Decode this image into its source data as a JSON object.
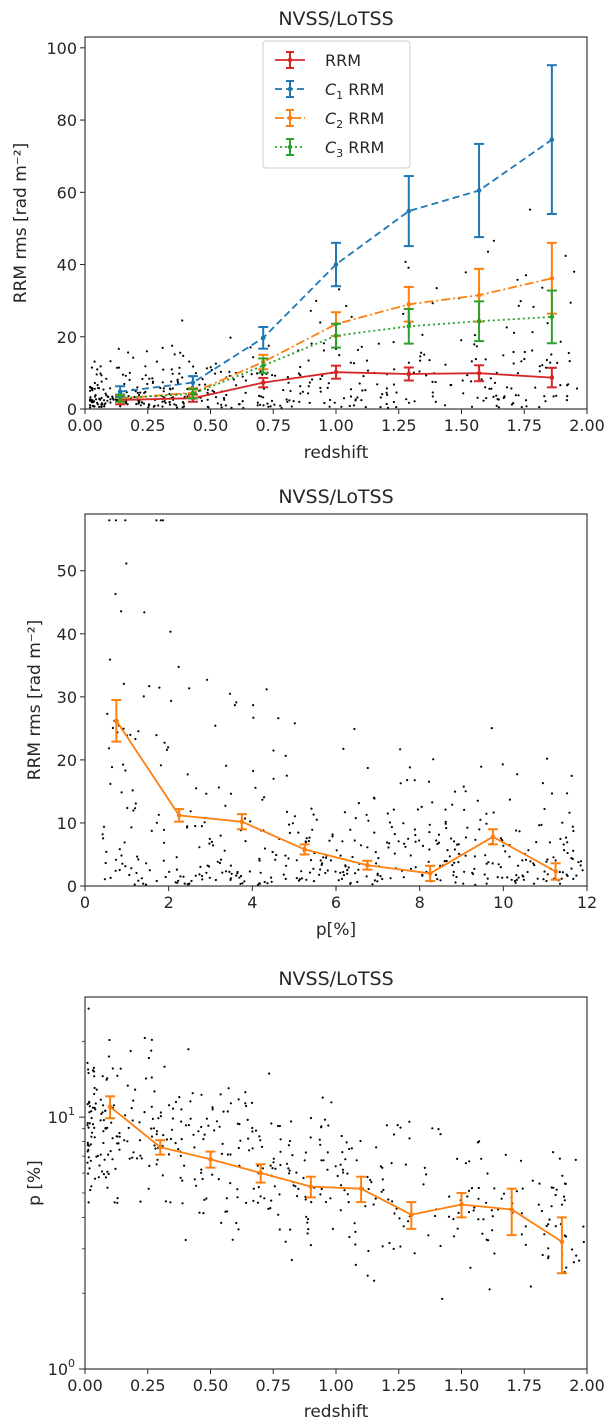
{
  "chart_data": [
    {
      "type": "scatter",
      "title": "NVSS/LoTSS",
      "xlabel": "redshift",
      "ylabel": "RRM rms [rad m⁻²]",
      "xlim": [
        0,
        2
      ],
      "ylim": [
        0,
        103
      ],
      "xticks": [
        "0.00",
        "0.25",
        "0.50",
        "0.75",
        "1.00",
        "1.25",
        "1.50",
        "1.75",
        "2.00"
      ],
      "yticks": [
        "0",
        "20",
        "40",
        "60",
        "80",
        "100"
      ],
      "legend_position": "top-center",
      "series": [
        {
          "name": "RRM",
          "name_sub": "",
          "name_rest": "RRM",
          "color": "#d62728",
          "dash": "solid",
          "x": [
            0.14,
            0.43,
            0.71,
            1.0,
            1.29,
            1.57,
            1.86
          ],
          "y": [
            2.5,
            3.0,
            7.3,
            10.2,
            9.7,
            9.9,
            8.7
          ],
          "err": [
            1.2,
            1.0,
            1.3,
            1.8,
            1.8,
            2.2,
            2.7
          ]
        },
        {
          "name": "C1 RRM",
          "name_sub": "1",
          "name_rest": " RRM",
          "color": "#1f77b4",
          "dash": "dashed",
          "x": [
            0.14,
            0.43,
            0.71,
            1.0,
            1.29,
            1.57,
            1.86
          ],
          "y": [
            4.8,
            7.3,
            19.7,
            40.0,
            54.8,
            60.5,
            74.6
          ],
          "err": [
            1.5,
            1.8,
            3.0,
            6.0,
            9.7,
            12.9,
            20.6
          ]
        },
        {
          "name": "C2 RRM",
          "name_sub": "2",
          "name_rest": " RRM",
          "color": "#ff7f0e",
          "dash": "dashdot",
          "x": [
            0.14,
            0.43,
            0.71,
            1.0,
            1.29,
            1.57,
            1.86
          ],
          "y": [
            2.9,
            4.5,
            13.0,
            23.5,
            29.0,
            31.5,
            36.2
          ],
          "err": [
            1.0,
            1.3,
            2.0,
            3.3,
            4.8,
            7.3,
            9.8
          ]
        },
        {
          "name": "C3 RRM",
          "name_sub": "3",
          "name_rest": " RRM",
          "color": "#2ca02c",
          "dash": "dotted",
          "x": [
            0.14,
            0.43,
            0.71,
            1.0,
            1.29,
            1.57,
            1.86
          ],
          "y": [
            3.0,
            4.2,
            12.0,
            20.3,
            22.9,
            24.3,
            25.5
          ],
          "err": [
            1.0,
            1.3,
            2.0,
            3.3,
            4.8,
            5.5,
            7.3
          ]
        }
      ]
    },
    {
      "type": "scatter",
      "title": "NVSS/LoTSS",
      "xlabel": "p[%]",
      "ylabel": "RRM rms [rad m⁻²]",
      "xlim": [
        0,
        12
      ],
      "ylim": [
        0,
        59
      ],
      "xticks": [
        "0",
        "2",
        "4",
        "6",
        "8",
        "10",
        "12"
      ],
      "yticks": [
        "0",
        "10",
        "20",
        "30",
        "40",
        "50"
      ],
      "series": [
        {
          "color": "#ff7f0e",
          "dash": "solid",
          "x": [
            0.75,
            2.25,
            3.75,
            5.25,
            6.75,
            8.25,
            9.75,
            11.25
          ],
          "y": [
            26.2,
            11.2,
            10.2,
            5.8,
            3.3,
            2.0,
            7.8,
            2.3
          ],
          "err": [
            3.3,
            1.0,
            1.2,
            0.8,
            0.7,
            1.2,
            1.2,
            1.3
          ]
        }
      ]
    },
    {
      "type": "scatter",
      "title": "NVSS/LoTSS",
      "xlabel": "redshift",
      "ylabel": "p [%]",
      "yscale": "log",
      "xlim": [
        0,
        2
      ],
      "ylim": [
        1,
        30
      ],
      "xticks": [
        "0.00",
        "0.25",
        "0.50",
        "0.75",
        "1.00",
        "1.25",
        "1.50",
        "1.75",
        "2.00"
      ],
      "yticks_major": [
        {
          "base": "10",
          "exp": "0"
        },
        {
          "base": "10",
          "exp": "1"
        }
      ],
      "series": [
        {
          "color": "#ff7f0e",
          "dash": "solid",
          "x": [
            0.1,
            0.3,
            0.5,
            0.7,
            0.9,
            1.1,
            1.3,
            1.5,
            1.7,
            1.9
          ],
          "y": [
            11.0,
            7.6,
            6.8,
            6.0,
            5.3,
            5.2,
            4.1,
            4.5,
            4.3,
            3.2
          ],
          "err": [
            1.1,
            0.5,
            0.5,
            0.5,
            0.5,
            0.6,
            0.5,
            0.5,
            0.9,
            0.8
          ]
        }
      ]
    }
  ]
}
